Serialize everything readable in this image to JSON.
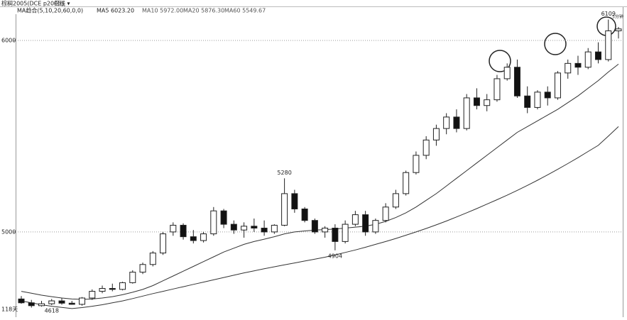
{
  "header": {
    "symbol": "棕榈2005(DCE p2005)",
    "period": "日线 ▾",
    "ma_title": "MA趋合(5,10,20,60,0,0)",
    "ma5": "MA5 6023.20",
    "ma10": "MA10 5972.00",
    "ma20": "MA20 5876.30",
    "ma60": "MA60 5549.67",
    "corner": "5分钟"
  },
  "chart_data": {
    "type": "candlestick",
    "bar_count_label": "118天",
    "ylim": [
      4555,
      6211
    ],
    "yticks": [
      5000,
      6000
    ],
    "grid": true,
    "up_color": "#ffffff",
    "down_color": "#111111",
    "edge_color": "#222222",
    "open": [
      4650,
      4630,
      4615,
      4625,
      4640,
      4628,
      4622,
      4655,
      4690,
      4705,
      4700,
      4735,
      4790,
      4830,
      4890,
      5000,
      5035,
      4975,
      4955,
      4990,
      5110,
      5040,
      5010,
      5030,
      5020,
      5000,
      5035,
      5200,
      5120,
      5060,
      5000,
      5020,
      4950,
      5040,
      5090,
      5000,
      5060,
      5130,
      5200,
      5310,
      5400,
      5480,
      5540,
      5600,
      5540,
      5700,
      5660,
      5690,
      5800,
      5860,
      5710,
      5650,
      5730,
      5700,
      5830,
      5880,
      5860,
      5940,
      5900,
      6050
    ],
    "high": [
      4665,
      4645,
      4640,
      4650,
      4655,
      4640,
      4660,
      4700,
      4720,
      4730,
      4740,
      4800,
      4840,
      4900,
      5000,
      5050,
      5045,
      5010,
      5000,
      5130,
      5120,
      5060,
      5050,
      5070,
      5060,
      5040,
      5280,
      5220,
      5130,
      5070,
      5030,
      5040,
      5060,
      5110,
      5110,
      5070,
      5150,
      5220,
      5320,
      5420,
      5500,
      5560,
      5620,
      5640,
      5720,
      5750,
      5720,
      5820,
      5880,
      5900,
      5760,
      5740,
      5760,
      5840,
      5900,
      5920,
      5960,
      5990,
      6109,
      6070
    ],
    "low": [
      4625,
      4605,
      4610,
      4618,
      4620,
      4620,
      4615,
      4645,
      4680,
      4690,
      4695,
      4730,
      4780,
      4820,
      4880,
      4980,
      4960,
      4940,
      4945,
      4980,
      5020,
      4990,
      4970,
      5000,
      4980,
      4990,
      5030,
      5100,
      5050,
      4990,
      4970,
      4904,
      4940,
      5030,
      4980,
      4990,
      5050,
      5120,
      5190,
      5300,
      5380,
      5450,
      5510,
      5520,
      5530,
      5640,
      5630,
      5680,
      5790,
      5700,
      5620,
      5640,
      5660,
      5690,
      5800,
      5820,
      5850,
      5880,
      5890,
      6010
    ],
    "close": [
      4630,
      4615,
      4625,
      4640,
      4628,
      4622,
      4655,
      4690,
      4705,
      4700,
      4735,
      4790,
      4830,
      4890,
      4990,
      5035,
      4975,
      4955,
      4990,
      5110,
      5040,
      5010,
      5030,
      5020,
      5000,
      5035,
      5200,
      5120,
      5060,
      5000,
      5020,
      4950,
      5040,
      5090,
      5000,
      5060,
      5130,
      5200,
      5310,
      5400,
      5480,
      5540,
      5600,
      5540,
      5700,
      5660,
      5690,
      5800,
      5860,
      5710,
      5650,
      5730,
      5700,
      5830,
      5880,
      5860,
      5940,
      5900,
      6050,
      6060
    ],
    "lines": [
      {
        "color": "#333333",
        "values": [
          4690,
          4680,
          4670,
          4662,
          4655,
          4650,
          4648,
          4650,
          4655,
          4662,
          4672,
          4685,
          4700,
          4720,
          4745,
          4770,
          4795,
          4820,
          4845,
          4870,
          4895,
          4915,
          4935,
          4950,
          4962,
          4975,
          4990,
          5000,
          5005,
          5010,
          5012,
          5015,
          5020,
          5025,
          5030,
          5040,
          5055,
          5075,
          5100,
          5130,
          5165,
          5200,
          5240,
          5280,
          5320,
          5360,
          5400,
          5440,
          5480,
          5520,
          5550,
          5580,
          5610,
          5640,
          5675,
          5710,
          5750,
          5790,
          5835,
          5876
        ]
      },
      {
        "color": "#333333",
        "values": [
          4640,
          4630,
          4620,
          4612,
          4606,
          4600,
          4605,
          4612,
          4620,
          4630,
          4640,
          4652,
          4665,
          4678,
          4690,
          4702,
          4714,
          4726,
          4738,
          4750,
          4762,
          4774,
          4786,
          4797,
          4808,
          4818,
          4828,
          4838,
          4848,
          4858,
          4868,
          4880,
          4893,
          4906,
          4920,
          4935,
          4950,
          4966,
          4983,
          5000,
          5018,
          5037,
          5057,
          5078,
          5100,
          5122,
          5145,
          5168,
          5192,
          5217,
          5243,
          5270,
          5298,
          5327,
          5357,
          5388,
          5420,
          5452,
          5500,
          5550
        ]
      }
    ]
  }
}
